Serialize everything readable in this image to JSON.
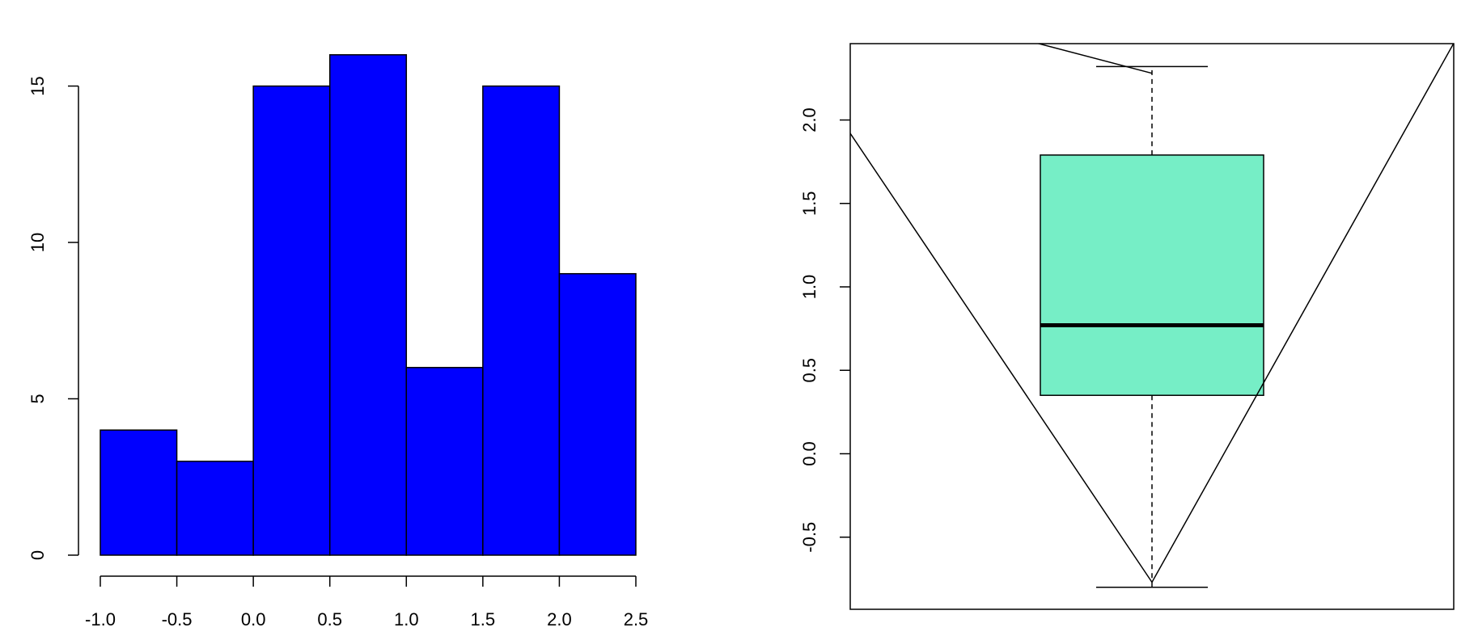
{
  "chart_data": [
    {
      "type": "bar",
      "title": "",
      "xlabel": "",
      "ylabel": "",
      "bins": [
        {
          "from": -1.0,
          "to": -0.5,
          "count": 4
        },
        {
          "from": -0.5,
          "to": 0.0,
          "count": 3
        },
        {
          "from": 0.0,
          "to": 0.5,
          "count": 15
        },
        {
          "from": 0.5,
          "to": 1.0,
          "count": 16
        },
        {
          "from": 1.0,
          "to": 1.5,
          "count": 6
        },
        {
          "from": 1.5,
          "to": 2.0,
          "count": 15
        },
        {
          "from": 2.0,
          "to": 2.5,
          "count": 9
        }
      ],
      "xlim": [
        -1.0,
        2.5
      ],
      "ylim": [
        0,
        16
      ],
      "x_ticks": [
        "-1.0",
        "-0.5",
        "0.0",
        "0.5",
        "1.0",
        "1.5",
        "2.0",
        "2.5"
      ],
      "y_ticks": [
        "0",
        "5",
        "10",
        "15"
      ],
      "colors": {
        "bar": "#0000ff",
        "border": "#000000"
      },
      "grid": false
    },
    {
      "type": "box",
      "title": "",
      "xlabel": "",
      "ylabel": "",
      "box": {
        "whisker_low": -0.8,
        "q1": 0.35,
        "median": 0.77,
        "q3": 1.79,
        "whisker_high": 2.32
      },
      "overlay_line": [
        {
          "x": 0.5,
          "y": 1.92
        },
        {
          "x": 1.0,
          "y": -0.77
        },
        {
          "x": 1.5,
          "y": 2.46
        }
      ],
      "extra_segment": [
        {
          "x": 0.81,
          "y": 2.46
        },
        {
          "x": 1.0,
          "y": 2.28
        }
      ],
      "xlim": [
        0.5,
        1.5
      ],
      "ylim": [
        -0.93,
        2.46
      ],
      "y_ticks": [
        "-0.5",
        "0.0",
        "0.5",
        "1.0",
        "1.5",
        "2.0"
      ],
      "colors": {
        "box": "#76eec6",
        "border": "#000000"
      },
      "grid": false
    }
  ]
}
